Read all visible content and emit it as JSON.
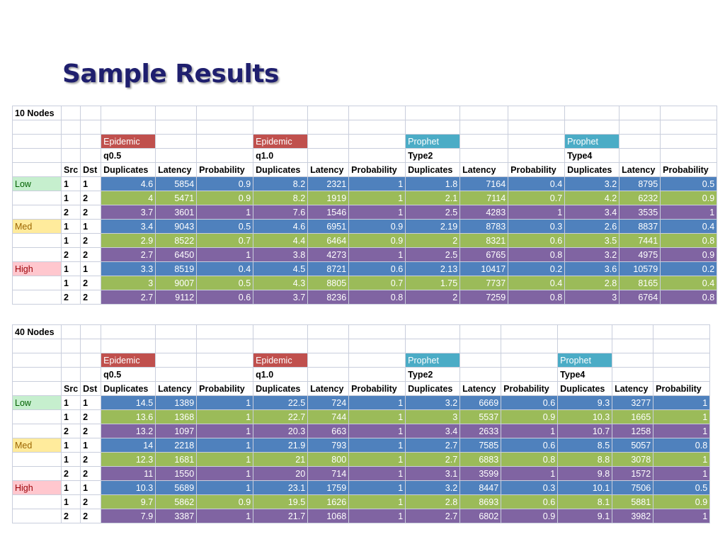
{
  "title": "Sample Results",
  "colors": {
    "blue_row": "#4f81bd",
    "green_row": "#9bbb59",
    "purple_row": "#8064a2",
    "epidemic": "#c0504d",
    "prophet": "#4bacc6",
    "low": "#c6efce",
    "med": "#ffeb9c",
    "high": "#ffc7ce"
  },
  "tables": [
    {
      "label": "10 Nodes",
      "groups": [
        {
          "algo": "Epidemic",
          "param": "q0.5"
        },
        {
          "algo": "Epidemic",
          "param": "q1.0"
        },
        {
          "algo": "Prophet",
          "param": "Type2"
        },
        {
          "algo": "Prophet",
          "param": "Type4"
        }
      ],
      "col_headers": [
        "Src",
        "Dst",
        "Duplicates",
        "Latency",
        "Probability",
        "Duplicates",
        "Latency",
        "Probability",
        "Duplicates",
        "Latency",
        "Probability",
        "Duplicates",
        "Latency",
        "Probability"
      ],
      "rows": [
        {
          "level": "Low",
          "src": "1",
          "dst": "1",
          "values": [
            "4.6",
            "5854",
            "0.9",
            "8.2",
            "2321",
            "1",
            "1.8",
            "7164",
            "0.4",
            "3.2",
            "8795",
            "0.5"
          ]
        },
        {
          "level": "",
          "src": "1",
          "dst": "2",
          "values": [
            "4",
            "5471",
            "0.9",
            "8.2",
            "1919",
            "1",
            "2.1",
            "7114",
            "0.7",
            "4.2",
            "6232",
            "0.9"
          ]
        },
        {
          "level": "",
          "src": "2",
          "dst": "2",
          "values": [
            "3.7",
            "3601",
            "1",
            "7.6",
            "1546",
            "1",
            "2.5",
            "4283",
            "1",
            "3.4",
            "3535",
            "1"
          ]
        },
        {
          "level": "Med",
          "src": "1",
          "dst": "1",
          "values": [
            "3.4",
            "9043",
            "0.5",
            "4.6",
            "6951",
            "0.9",
            "2.19",
            "8783",
            "0.3",
            "2.6",
            "8837",
            "0.4"
          ]
        },
        {
          "level": "",
          "src": "1",
          "dst": "2",
          "values": [
            "2.9",
            "8522",
            "0.7",
            "4.4",
            "6464",
            "0.9",
            "2",
            "8321",
            "0.6",
            "3.5",
            "7441",
            "0.8"
          ]
        },
        {
          "level": "",
          "src": "2",
          "dst": "2",
          "values": [
            "2.7",
            "6450",
            "1",
            "3.8",
            "4273",
            "1",
            "2.5",
            "6765",
            "0.8",
            "3.2",
            "4975",
            "0.9"
          ]
        },
        {
          "level": "High",
          "src": "1",
          "dst": "1",
          "values": [
            "3.3",
            "8519",
            "0.4",
            "4.5",
            "8721",
            "0.6",
            "2.13",
            "10417",
            "0.2",
            "3.6",
            "10579",
            "0.2"
          ]
        },
        {
          "level": "",
          "src": "1",
          "dst": "2",
          "values": [
            "3",
            "9007",
            "0.5",
            "4.3",
            "8805",
            "0.7",
            "1.75",
            "7737",
            "0.4",
            "2.8",
            "8165",
            "0.4"
          ]
        },
        {
          "level": "",
          "src": "2",
          "dst": "2",
          "values": [
            "2.7",
            "9112",
            "0.6",
            "3.7",
            "8236",
            "0.8",
            "2",
            "7259",
            "0.8",
            "3",
            "6764",
            "0.8"
          ]
        }
      ]
    },
    {
      "label": "40 Nodes",
      "groups": [
        {
          "algo": "Epidemic",
          "param": "q0.5"
        },
        {
          "algo": "Epidemic",
          "param": "q1.0"
        },
        {
          "algo": "Prophet",
          "param": "Type2"
        },
        {
          "algo": "Prophet",
          "param": "Type4"
        }
      ],
      "col_headers": [
        "Src",
        "Dst",
        "Duplicates",
        "Latency",
        "Probability",
        "Duplicates",
        "Latency",
        "Probability",
        "Duplicates",
        "Latency",
        "Probability",
        "Duplicates",
        "Latency",
        "Probability"
      ],
      "rows": [
        {
          "level": "Low",
          "src": "1",
          "dst": "1",
          "values": [
            "14.5",
            "1389",
            "1",
            "22.5",
            "724",
            "1",
            "3.2",
            "6669",
            "0.6",
            "9.3",
            "3277",
            "1"
          ]
        },
        {
          "level": "",
          "src": "1",
          "dst": "2",
          "values": [
            "13.6",
            "1368",
            "1",
            "22.7",
            "744",
            "1",
            "3",
            "5537",
            "0.9",
            "10.3",
            "1665",
            "1"
          ]
        },
        {
          "level": "",
          "src": "2",
          "dst": "2",
          "values": [
            "13.2",
            "1097",
            "1",
            "20.3",
            "663",
            "1",
            "3.4",
            "2633",
            "1",
            "10.7",
            "1258",
            "1"
          ]
        },
        {
          "level": "Med",
          "src": "1",
          "dst": "1",
          "values": [
            "14",
            "2218",
            "1",
            "21.9",
            "793",
            "1",
            "2.7",
            "7585",
            "0.6",
            "8.5",
            "5057",
            "0.8"
          ]
        },
        {
          "level": "",
          "src": "1",
          "dst": "2",
          "values": [
            "12.3",
            "1681",
            "1",
            "21",
            "800",
            "1",
            "2.7",
            "6883",
            "0.8",
            "8.8",
            "3078",
            "1"
          ]
        },
        {
          "level": "",
          "src": "2",
          "dst": "2",
          "values": [
            "11",
            "1550",
            "1",
            "20",
            "714",
            "1",
            "3.1",
            "3599",
            "1",
            "9.8",
            "1572",
            "1"
          ]
        },
        {
          "level": "High",
          "src": "1",
          "dst": "1",
          "values": [
            "10.3",
            "5689",
            "1",
            "23.1",
            "1759",
            "1",
            "3.2",
            "8447",
            "0.3",
            "10.1",
            "7506",
            "0.5"
          ]
        },
        {
          "level": "",
          "src": "1",
          "dst": "2",
          "values": [
            "9.7",
            "5862",
            "0.9",
            "19.5",
            "1626",
            "1",
            "2.8",
            "8693",
            "0.6",
            "8.1",
            "5881",
            "0.9"
          ]
        },
        {
          "level": "",
          "src": "2",
          "dst": "2",
          "values": [
            "7.9",
            "3387",
            "1",
            "21.7",
            "1068",
            "1",
            "2.7",
            "6802",
            "0.9",
            "9.1",
            "3982",
            "1"
          ]
        }
      ]
    }
  ]
}
